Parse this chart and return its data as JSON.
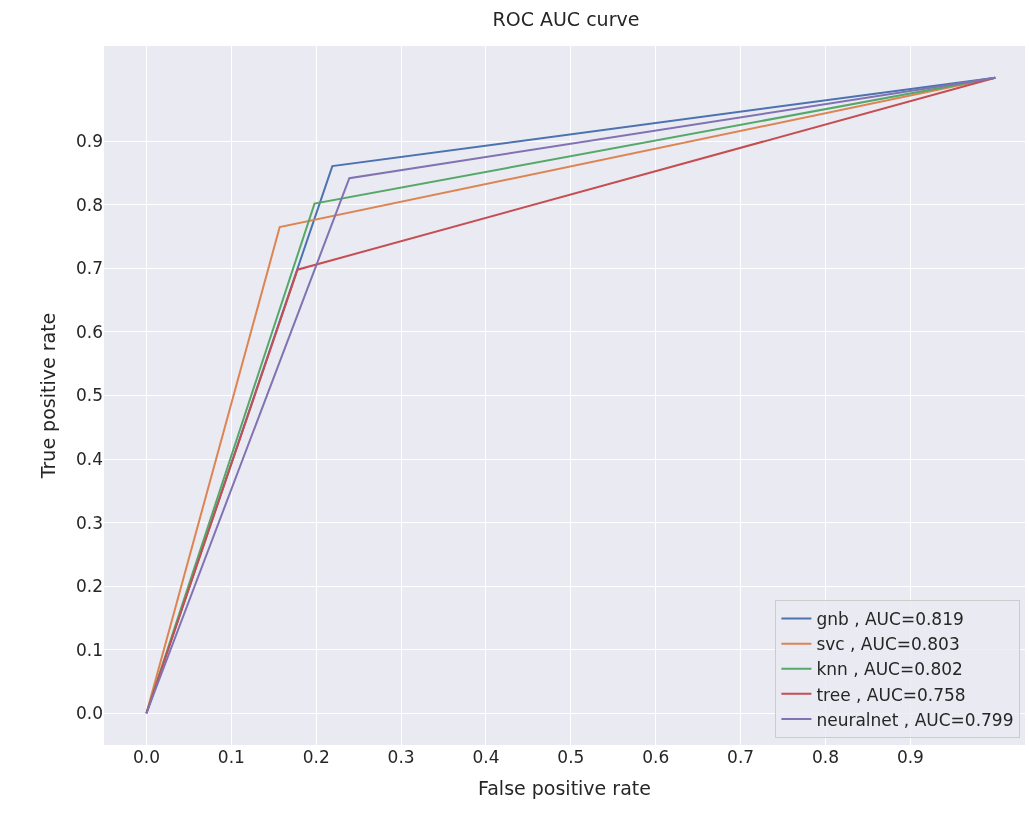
{
  "chart_data": {
    "type": "line",
    "title": "ROC AUC curve",
    "xlabel": "False positive rate",
    "ylabel": "True positive rate",
    "series": [
      {
        "name": "gnb , AUC=0.819",
        "color": "#4c72b0",
        "x": [
          0,
          0.219,
          1
        ],
        "values": [
          0,
          0.861,
          1
        ]
      },
      {
        "name": "svc , AUC=0.803",
        "color": "#dd8452",
        "x": [
          0,
          0.157,
          1
        ],
        "values": [
          0,
          0.765,
          1
        ]
      },
      {
        "name": "knn , AUC=0.802",
        "color": "#55a868",
        "x": [
          0,
          0.198,
          1
        ],
        "values": [
          0,
          0.802,
          1
        ]
      },
      {
        "name": "tree , AUC=0.758",
        "color": "#c44e52",
        "x": [
          0,
          0.178,
          1
        ],
        "values": [
          0,
          0.698,
          1
        ]
      },
      {
        "name": "neuralnet , AUC=0.799",
        "color": "#8172b3",
        "x": [
          0,
          0.239,
          1
        ],
        "values": [
          0,
          0.842,
          1
        ]
      }
    ],
    "xlim": [
      -0.05,
      1.035
    ],
    "ylim": [
      -0.05,
      1.05
    ],
    "xticks": [
      {
        "value": 0,
        "label": "0.0"
      },
      0.1,
      0.2,
      0.3,
      0.4,
      0.5,
      0.6,
      0.7,
      0.8,
      0.9
    ],
    "yticks": [
      {
        "value": 0,
        "label": "0.0"
      },
      0.1,
      0.2,
      0.3,
      0.4,
      0.5,
      0.6,
      0.7,
      0.8,
      0.9
    ],
    "grid": true,
    "legend": "bottom right",
    "marker": "none",
    "line_style": "solid"
  }
}
